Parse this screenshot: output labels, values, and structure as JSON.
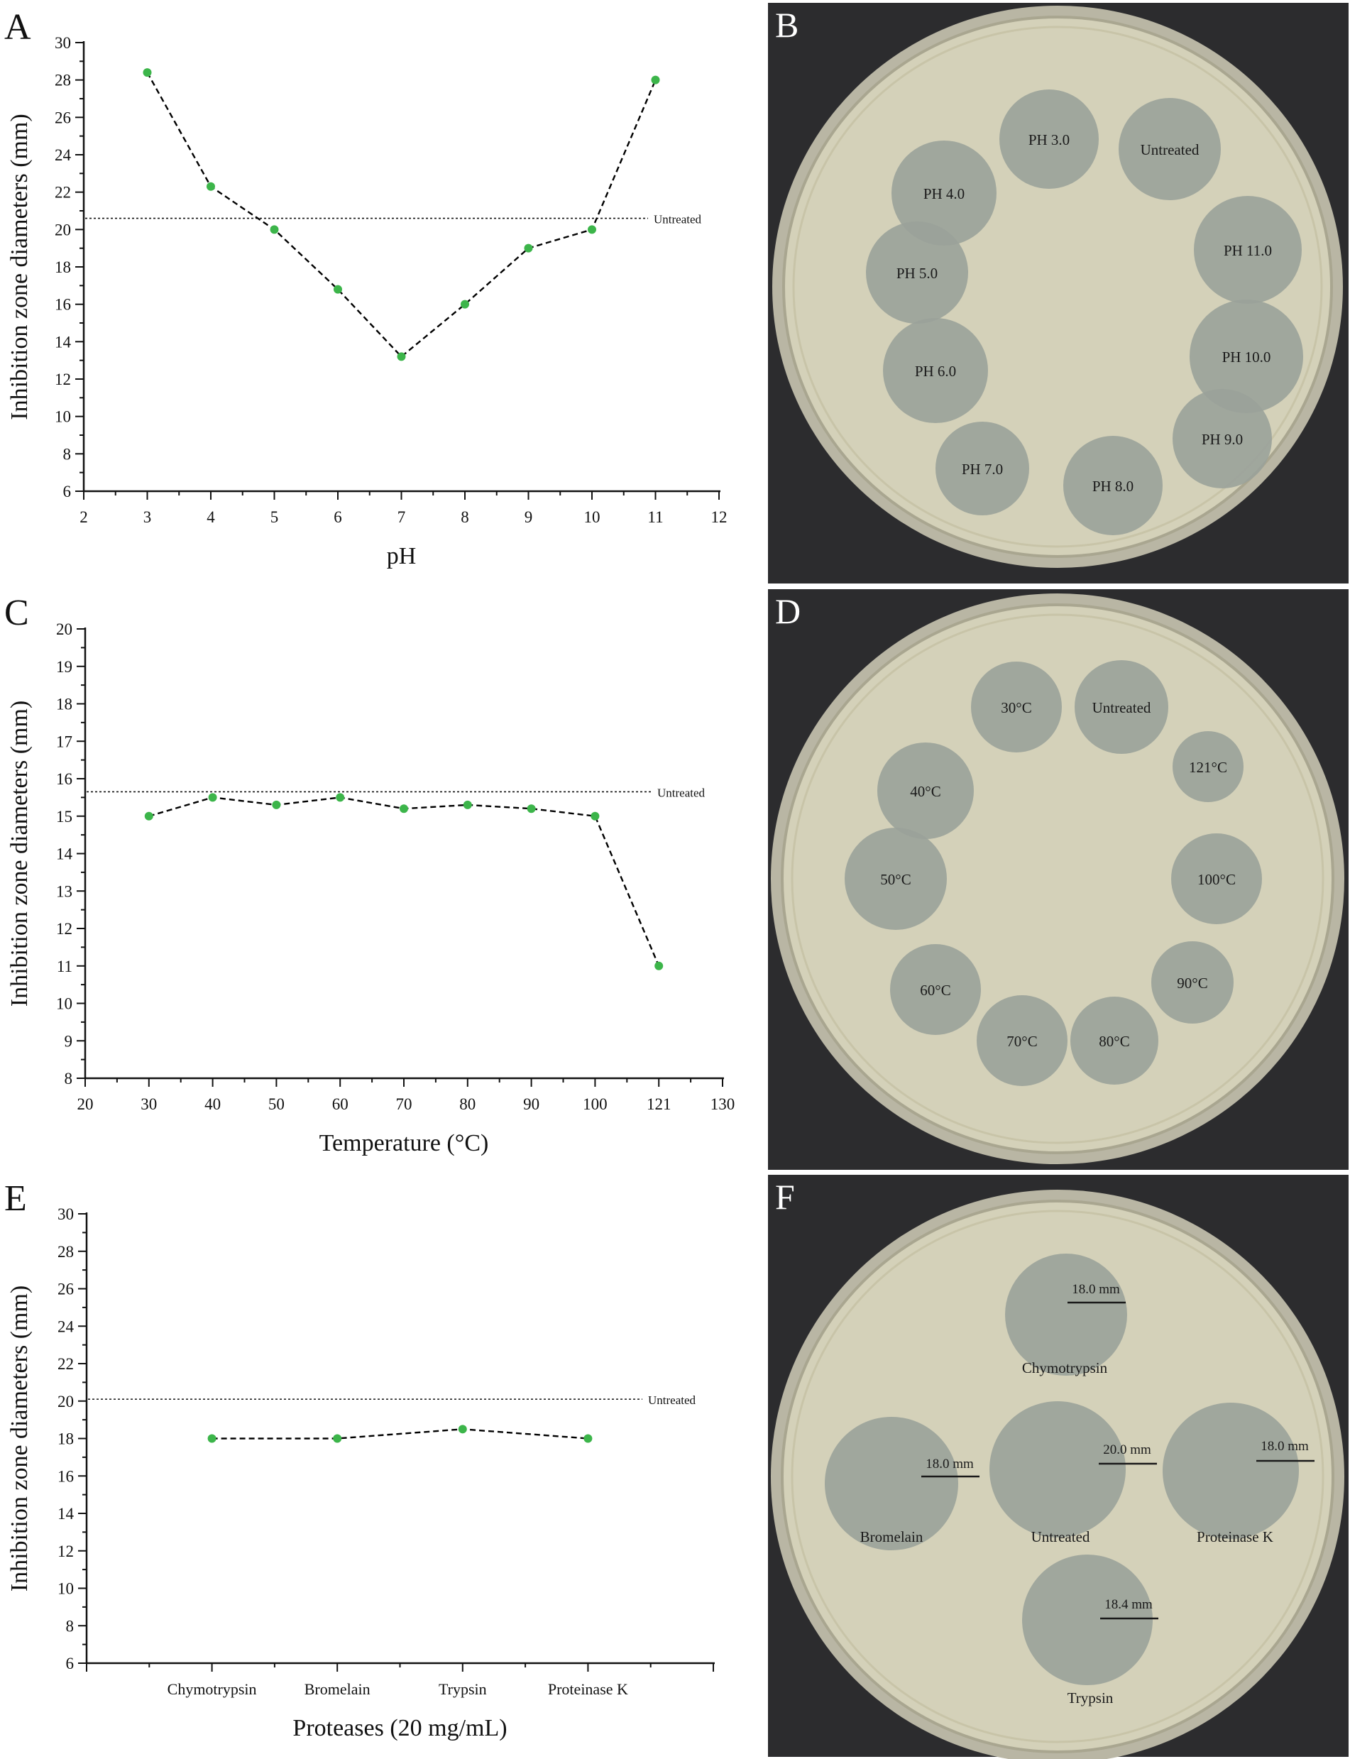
{
  "panels": [
    {
      "letter": "A",
      "chart_data": {
        "type": "line",
        "xlabel": "pH",
        "ylabel": "Inhibition zone diameters (mm)",
        "xlim": [
          2,
          12
        ],
        "ylim": [
          6,
          30
        ],
        "x_ticks": [
          "2",
          "3",
          "4",
          "5",
          "6",
          "7",
          "8",
          "9",
          "10",
          "11",
          "12"
        ],
        "y_ticks": [
          "6",
          "8",
          "10",
          "12",
          "14",
          "16",
          "18",
          "20",
          "22",
          "24",
          "26",
          "28",
          "30"
        ],
        "series": [
          {
            "x": [
              3,
              4,
              5,
              6,
              7,
              8,
              9,
              10,
              11
            ],
            "values": [
              28.4,
              22.3,
              20,
              16.8,
              13.2,
              16,
              19,
              20,
              28
            ]
          }
        ],
        "reference": {
          "label": "Untreated",
          "value": 20.6
        }
      }
    },
    {
      "letter": "C",
      "chart_data": {
        "type": "line",
        "xlabel": "Temperature (°C)",
        "ylabel": "Inhibition zone diameters (mm)",
        "xlim": [
          20,
          130
        ],
        "ylim": [
          8,
          20
        ],
        "x_ticks": [
          "20",
          "30",
          "40",
          "50",
          "60",
          "70",
          "80",
          "90",
          "100",
          "121",
          "130"
        ],
        "y_ticks": [
          "8",
          "9",
          "10",
          "11",
          "12",
          "13",
          "14",
          "15",
          "16",
          "17",
          "18",
          "19",
          "20"
        ],
        "series": [
          {
            "x": [
              "30",
              "40",
              "50",
              "60",
              "70",
              "80",
              "90",
              "100",
              "121"
            ],
            "values": [
              15,
              15.5,
              15.3,
              15.5,
              15.2,
              15.3,
              15.2,
              15,
              11
            ]
          }
        ],
        "reference": {
          "label": "Untreated",
          "value": 15.65
        }
      }
    },
    {
      "letter": "E",
      "chart_data": {
        "type": "line",
        "xlabel": "Proteases (20 mg/mL)",
        "ylabel": "Inhibition zone diameters (mm)",
        "ylim": [
          6,
          30
        ],
        "categories": [
          "Chymotrypsin",
          "Bromelain",
          "Trypsin",
          "Proteinase K"
        ],
        "y_ticks": [
          "6",
          "8",
          "10",
          "12",
          "14",
          "16",
          "18",
          "20",
          "22",
          "24",
          "26",
          "28",
          "30"
        ],
        "series": [
          {
            "values": [
              18,
              18,
              18.5,
              18
            ]
          }
        ],
        "reference": {
          "label": "Untreated",
          "value": 20.1
        }
      }
    }
  ],
  "photos": [
    {
      "letter": "B",
      "labels": [
        "PH 3.0",
        "Untreated",
        "PH 4.0",
        "PH 11.0",
        "PH 5.0",
        "PH 6.0",
        "PH 10.0",
        "PH 9.0",
        "PH 7.0",
        "PH 8.0"
      ]
    },
    {
      "letter": "D",
      "labels": [
        "30°C",
        "Untreated",
        "121°C",
        "40°C",
        "50°C",
        "100°C",
        "60°C",
        "90°C",
        "70°C",
        "80°C"
      ]
    },
    {
      "letter": "F",
      "labels": [
        "Chymotrypsin",
        "Bromelain",
        "Untreated",
        "Proteinase K",
        "Trypsin"
      ],
      "measurements": [
        "18.0 mm",
        "18.0 mm",
        "20.0 mm",
        "18.0 mm",
        "18.4 mm"
      ]
    }
  ],
  "colors": {
    "marker": "#3cb54a",
    "line": "#000000",
    "photo_bg": "#2c2c2e",
    "agar": "#d4d1b9",
    "zone": "#9aa29a"
  }
}
